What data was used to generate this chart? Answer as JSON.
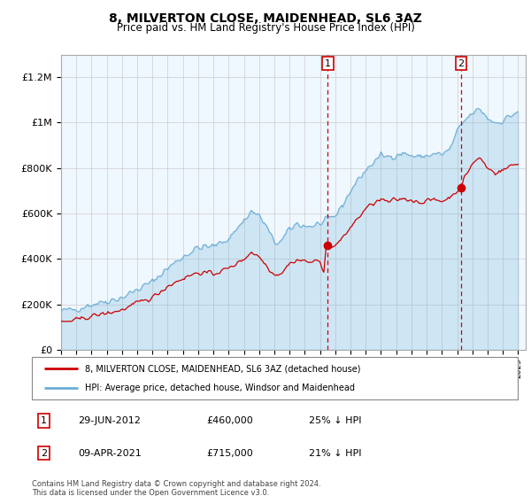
{
  "title": "8, MILVERTON CLOSE, MAIDENHEAD, SL6 3AZ",
  "subtitle": "Price paid vs. HM Land Registry's House Price Index (HPI)",
  "ylim": [
    0,
    1300000
  ],
  "yticks": [
    0,
    200000,
    400000,
    600000,
    800000,
    1000000,
    1200000
  ],
  "ytick_labels": [
    "£0",
    "£200K",
    "£400K",
    "£600K",
    "£800K",
    "£1M",
    "£1.2M"
  ],
  "hpi_color": "#6baed6",
  "price_color": "#cc0000",
  "vline_color": "#cc0000",
  "plot_bg": "#f0f8ff",
  "annotation1": {
    "label": "1",
    "year": 2012.5,
    "price_val": 460000,
    "date": "29-JUN-2012",
    "price": "£460,000",
    "pct": "25% ↓ HPI"
  },
  "annotation2": {
    "label": "2",
    "year": 2021.25,
    "price_val": 715000,
    "date": "09-APR-2021",
    "price": "£715,000",
    "pct": "21% ↓ HPI"
  },
  "legend_label_red": "8, MILVERTON CLOSE, MAIDENHEAD, SL6 3AZ (detached house)",
  "legend_label_blue": "HPI: Average price, detached house, Windsor and Maidenhead",
  "footer": "Contains HM Land Registry data © Crown copyright and database right 2024.\nThis data is licensed under the Open Government Licence v3.0."
}
